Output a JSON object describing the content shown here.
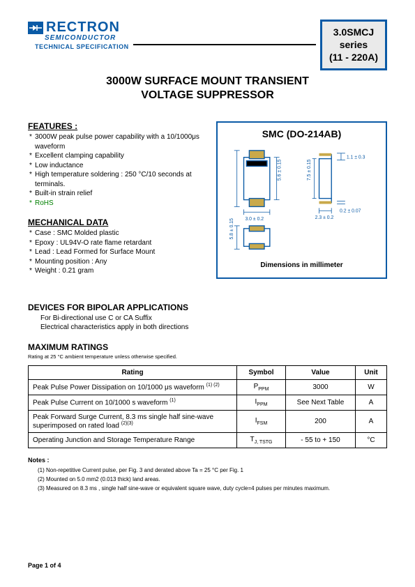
{
  "logo": {
    "name": "RECTRON",
    "sub": "SEMICONDUCTOR",
    "spec": "TECHNICAL SPECIFICATION"
  },
  "series_box": {
    "line1": "3.0SMCJ",
    "line2": "series",
    "line3": "(11 - 220A)"
  },
  "title": {
    "line1": "3000W SURFACE MOUNT TRANSIENT",
    "line2": "VOLTAGE SUPPRESSOR"
  },
  "features": {
    "heading": "FEATURES :",
    "items": [
      "3000W peak pulse power capability with a 10/1000μs  waveform",
      "Excellent clamping capability",
      "Low inductance",
      "High temperature soldering : 250 °C/10 seconds at terminals.",
      "Built-in strain relief",
      "RoHS"
    ]
  },
  "mechanical": {
    "heading": "MECHANICAL DATA",
    "items": [
      "Case :  SMC Molded plastic",
      "Epoxy : UL94V-O rate flame retardant",
      "Lead : Lead Formed for Surface Mount",
      "Mounting  position : Any",
      "Weight : 0.21 gram"
    ]
  },
  "package": {
    "title": "SMC (DO-214AB)",
    "caption": "Dimensions in millimeter",
    "dims": {
      "body_h": "5.6 ± 0.15",
      "body_w": "3.0  ± 0.2",
      "lead_span": "5.8  ± 0.15",
      "side_h": "7.5  ± 0.15",
      "side_w": "2.3 ± 0.2",
      "thick": "1.1 ± 0.3",
      "lead_t": "0.2  ± 0.07"
    },
    "colors": {
      "outline": "#0a5aa6",
      "band": "#000000",
      "lead": "#c9a94a"
    }
  },
  "bipolar": {
    "heading": "DEVICES FOR BIPOLAR APPLICATIONS",
    "line1": "For Bi-directional use C or CA Suffix",
    "line2": "Electrical characteristics apply in both directions"
  },
  "ratings": {
    "heading": "MAXIMUM RATINGS",
    "sub": "Rating at 25 °C ambient temperature unless otherwise specified.",
    "columns": [
      "Rating",
      "Symbol",
      "Value",
      "Unit"
    ],
    "rows": [
      {
        "rating": "Peak Pulse Power Dissipation on 10/1000 μs waveform",
        "sup": "(1) (2)",
        "symbol": "P",
        "sub": "PPM",
        "value": "3000",
        "unit": "W"
      },
      {
        "rating": "Peak Pulse Current on 10/1000 s waveform",
        "sup": "(1)",
        "symbol": "I",
        "sub": "PPM",
        "value": "See Next Table",
        "unit": "A"
      },
      {
        "rating": "Peak Forward Surge Current, 8.3 ms single half sine-wave superimposed on rated load",
        "sup": "(2)(3)",
        "symbol": "I",
        "sub": "FSM",
        "value": "200",
        "unit": "A"
      },
      {
        "rating": "Operating Junction and Storage Temperature Range",
        "sup": "",
        "symbol": "T",
        "sub": "J, TSTG",
        "value": "- 55 to + 150",
        "unit": "°C"
      }
    ]
  },
  "notes": {
    "heading": "Notes :",
    "items": [
      "(1) Non-repetitive Current pulse, per Fig. 3 and derated above Ta = 25 °C per Fig. 1",
      "(2) Mounted on 5.0 mm2 (0.013 thick) land areas.",
      "(3) Measured on 8.3 ms , single half sine-wave or equivalent square wave, duty cycle=4 pulses per minutes maximum."
    ]
  },
  "footer": "Page 1 of 4"
}
